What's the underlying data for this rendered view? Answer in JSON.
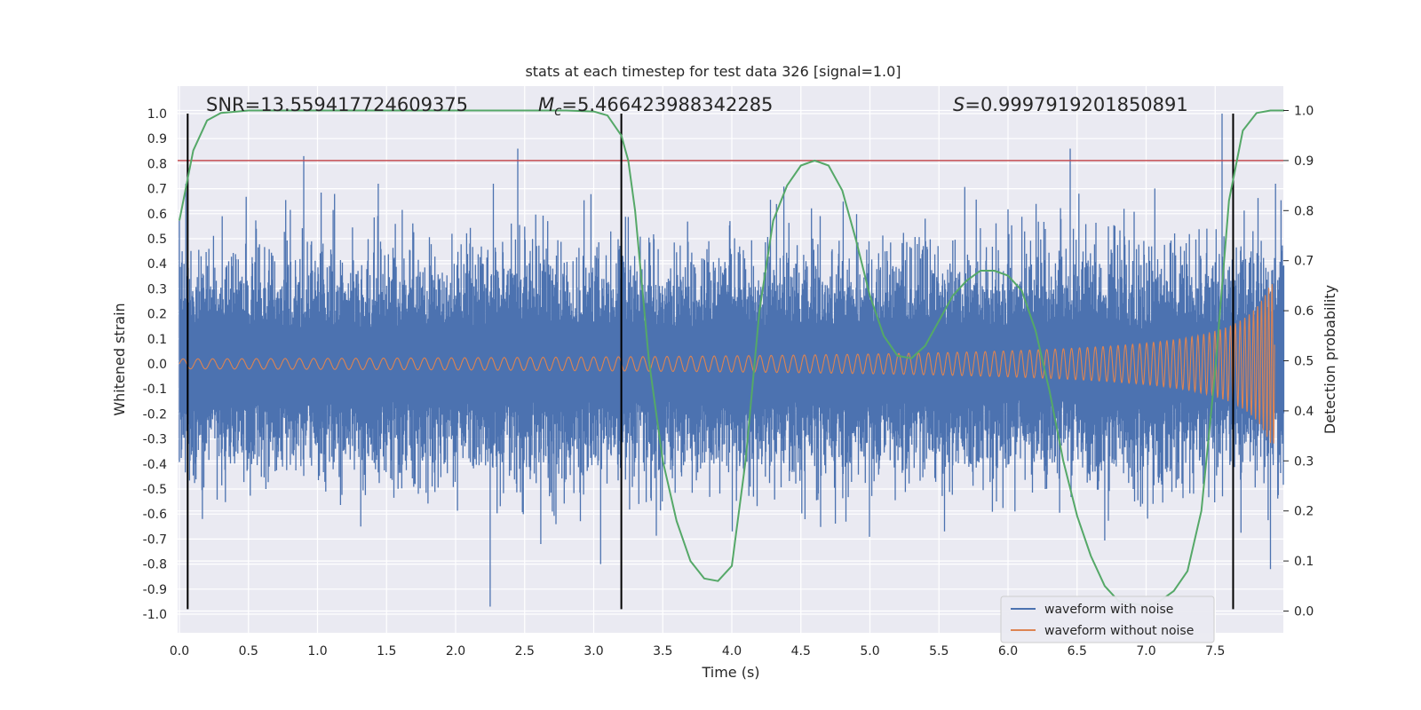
{
  "chart_data": {
    "type": "line",
    "title": "stats at each timestep for test data 326 [signal=1.0]",
    "xlabel": "Time (s)",
    "ylabel": "Whitened strain",
    "y2label": "Detection probability",
    "xlim": [
      0.0,
      8.0
    ],
    "ylim": [
      -1.08,
      1.1
    ],
    "y2lim": [
      -0.04,
      1.04
    ],
    "xticks": [
      "0.0",
      "0.5",
      "1.0",
      "1.5",
      "2.0",
      "2.5",
      "3.0",
      "3.5",
      "4.0",
      "4.5",
      "5.0",
      "5.5",
      "6.0",
      "6.5",
      "7.0",
      "7.5"
    ],
    "yticks": [
      "1.0",
      "0.9",
      "0.8",
      "0.7",
      "0.6",
      "0.5",
      "0.4",
      "0.3",
      "0.2",
      "0.1",
      "0.0",
      "-0.1",
      "-0.2",
      "-0.3",
      "-0.4",
      "-0.5",
      "-0.6",
      "-0.7",
      "-0.8",
      "-0.9",
      "-1.0"
    ],
    "y2ticks": [
      "1.0",
      "0.9",
      "0.8",
      "0.7",
      "0.6",
      "0.5",
      "0.4",
      "0.3",
      "0.2",
      "0.1",
      "0.0"
    ],
    "annotations": {
      "snr": "SNR=13.559417724609375",
      "mc_symbol": "M",
      "mc_sub": "c",
      "mc_value": "=5.466423988342285",
      "s_symbol": "S",
      "s_value": "=0.9997919201850891"
    },
    "threshold": {
      "value": 0.9,
      "axis": "right",
      "color": "#c44e52"
    },
    "detection_markers_s": [
      0.06,
      3.2,
      7.63
    ],
    "detection_marker_range": [
      -0.98,
      1.0
    ],
    "series": [
      {
        "name": "waveform with noise",
        "color": "#4c72b0",
        "typical_envelope": 0.28,
        "peak_amplitude": 1.0,
        "outliers": [
          {
            "t": 0.9,
            "v": 0.83
          },
          {
            "t": 2.25,
            "v": -0.97
          },
          {
            "t": 2.45,
            "v": 0.86
          },
          {
            "t": 3.05,
            "v": -0.8
          },
          {
            "t": 6.45,
            "v": 0.86
          },
          {
            "t": 7.55,
            "v": 1.0
          },
          {
            "t": 7.9,
            "v": -0.82
          }
        ]
      },
      {
        "name": "waveform without noise",
        "color": "#dd8452",
        "amplitude_start": 0.02,
        "amplitude_end": 0.32,
        "chirp_end_s": 7.93
      },
      {
        "name": "detection probability",
        "color": "#55a868",
        "axis": "right",
        "x": [
          0.0,
          0.05,
          0.1,
          0.2,
          0.3,
          0.5,
          1.0,
          2.0,
          2.8,
          3.0,
          3.1,
          3.2,
          3.25,
          3.3,
          3.35,
          3.4,
          3.5,
          3.6,
          3.7,
          3.8,
          3.9,
          4.0,
          4.1,
          4.2,
          4.3,
          4.4,
          4.5,
          4.6,
          4.7,
          4.8,
          4.9,
          5.0,
          5.1,
          5.2,
          5.3,
          5.4,
          5.5,
          5.6,
          5.7,
          5.8,
          5.9,
          6.0,
          6.1,
          6.2,
          6.3,
          6.4,
          6.5,
          6.6,
          6.7,
          6.8,
          6.9,
          7.0,
          7.1,
          7.2,
          7.3,
          7.4,
          7.5,
          7.6,
          7.7,
          7.8,
          7.9,
          8.0
        ],
        "y": [
          0.78,
          0.85,
          0.92,
          0.98,
          0.995,
          1.0,
          1.0,
          1.0,
          1.0,
          0.998,
          0.99,
          0.95,
          0.9,
          0.8,
          0.65,
          0.5,
          0.3,
          0.18,
          0.1,
          0.065,
          0.06,
          0.09,
          0.3,
          0.6,
          0.78,
          0.85,
          0.89,
          0.9,
          0.89,
          0.84,
          0.74,
          0.63,
          0.55,
          0.51,
          0.505,
          0.53,
          0.58,
          0.63,
          0.66,
          0.68,
          0.68,
          0.67,
          0.64,
          0.56,
          0.44,
          0.3,
          0.19,
          0.11,
          0.05,
          0.02,
          0.015,
          0.01,
          0.02,
          0.04,
          0.08,
          0.2,
          0.48,
          0.82,
          0.96,
          0.995,
          1.0,
          1.0
        ]
      }
    ],
    "legend": {
      "position": "bottom-right",
      "entries": [
        "waveform with noise",
        "waveform without noise"
      ]
    }
  }
}
